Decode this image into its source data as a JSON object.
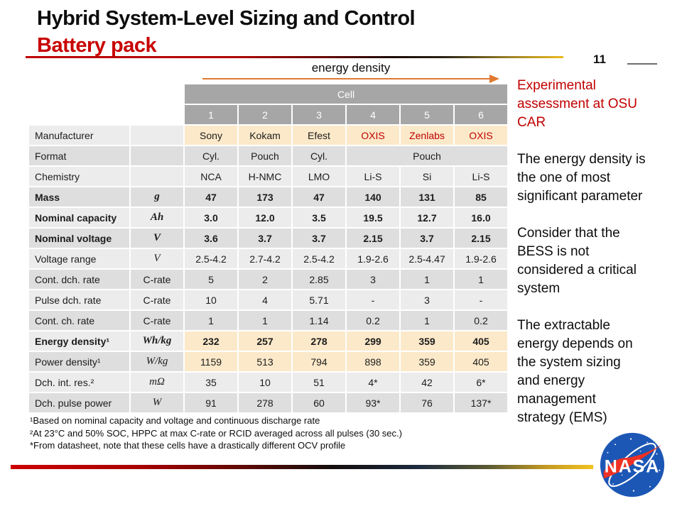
{
  "header": {
    "title": "Hybrid System-Level Sizing and Control",
    "subtitle": "Battery pack",
    "page_number": "11"
  },
  "arrow": {
    "label": "energy density"
  },
  "table": {
    "group_header": "Cell",
    "column_numbers": [
      "1",
      "2",
      "3",
      "4",
      "5",
      "6"
    ],
    "rows": [
      {
        "label": "Manufacturer",
        "unit": "",
        "unit_style": "plain",
        "bold": false,
        "highlight_values": true,
        "values": [
          "Sony",
          "Kokam",
          "Efest",
          "OXIS",
          "Zenlabs",
          "OXIS"
        ],
        "red_values": [
          false,
          false,
          false,
          true,
          true,
          true
        ]
      },
      {
        "label": "Format",
        "unit": "",
        "unit_style": "plain",
        "bold": false,
        "values": [
          "Cyl.",
          "Pouch",
          "Cyl.",
          {
            "text": "Pouch",
            "span": 3
          }
        ]
      },
      {
        "label": "Chemistry",
        "unit": "",
        "unit_style": "plain",
        "bold": false,
        "values": [
          "NCA",
          "H-NMC",
          "LMO",
          "Li-S",
          "Si",
          "Li-S"
        ]
      },
      {
        "label": "Mass",
        "unit": "g",
        "unit_style": "math",
        "bold": true,
        "values": [
          "47",
          "173",
          "47",
          "140",
          "131",
          "85"
        ]
      },
      {
        "label": "Nominal capacity",
        "unit": "Ah",
        "unit_style": "math",
        "bold": true,
        "values": [
          "3.0",
          "12.0",
          "3.5",
          "19.5",
          "12.7",
          "16.0"
        ]
      },
      {
        "label": "Nominal voltage",
        "unit": "V",
        "unit_style": "math",
        "bold": true,
        "values": [
          "3.6",
          "3.7",
          "3.7",
          "2.15",
          "3.7",
          "2.15"
        ]
      },
      {
        "label": "Voltage range",
        "unit": "V",
        "unit_style": "math",
        "bold": false,
        "values": [
          "2.5-4.2",
          "2.7-4.2",
          "2.5-4.2",
          "1.9-2.6",
          "2.5-4.47",
          "1.9-2.6"
        ]
      },
      {
        "label": "Cont. dch. rate",
        "unit": "C-rate",
        "unit_style": "plain",
        "bold": false,
        "values": [
          "5",
          "2",
          "2.85",
          "3",
          "1",
          "1"
        ]
      },
      {
        "label": "Pulse dch. rate",
        "unit": "C-rate",
        "unit_style": "plain",
        "bold": false,
        "values": [
          "10",
          "4",
          "5.71",
          "-",
          "3",
          "-"
        ]
      },
      {
        "label": "Cont. ch. rate",
        "unit": "C-rate",
        "unit_style": "plain",
        "bold": false,
        "values": [
          "1",
          "1",
          "1.14",
          "0.2",
          "1",
          "0.2"
        ]
      },
      {
        "label": "Energy density¹",
        "unit": "Wh/kg",
        "unit_style": "math",
        "bold": true,
        "highlight_values": true,
        "values": [
          "232",
          "257",
          "278",
          "299",
          "359",
          "405"
        ]
      },
      {
        "label": "Power density¹",
        "unit": "W/kg",
        "unit_style": "math",
        "bold": false,
        "highlight_values": true,
        "values": [
          "1159",
          "513",
          "794",
          "898",
          "359",
          "405"
        ]
      },
      {
        "label": "Dch. int. res.²",
        "unit": "mΩ",
        "unit_style": "math",
        "bold": false,
        "values": [
          "35",
          "10",
          "51",
          "4*",
          "42",
          "6*"
        ]
      },
      {
        "label": "Dch. pulse power",
        "unit": "W",
        "unit_style": "math",
        "bold": false,
        "values": [
          "91",
          "278",
          "60",
          "93*",
          "76",
          "137*"
        ]
      }
    ]
  },
  "footnotes": [
    "¹Based on nominal capacity and voltage and continuous discharge rate",
    "²At 23°C and 50% SOC, HPPC at max C-rate or RCID averaged across all pulses (30 sec.)",
    "*From datasheet, note that these cells have a drastically different OCV profile"
  ],
  "sidebar": {
    "heading": "Experimental\nassessment at OSU\nCAR",
    "paragraphs": [
      "The energy density is\nthe one of most\nsignificant parameter",
      "Consider that the\nBESS is not\nconsidered a critical\nsystem",
      "The extractable\nenergy depends on\nthe system sizing\nand energy\nmanagement\nstrategy (EMS)"
    ]
  },
  "logo": {
    "name": "NASA insignia",
    "text": "NASA"
  },
  "colors": {
    "accent_red": "#C00000",
    "table_header_gray": "#A6A6A6",
    "row_light": "#ECECEC",
    "row_dark": "#DEDEDE",
    "highlight_yellow": "#FCE9C9",
    "arrow_orange": "#E0792F",
    "nasa_blue": "#1C57B5",
    "nasa_red": "#EE3124"
  }
}
